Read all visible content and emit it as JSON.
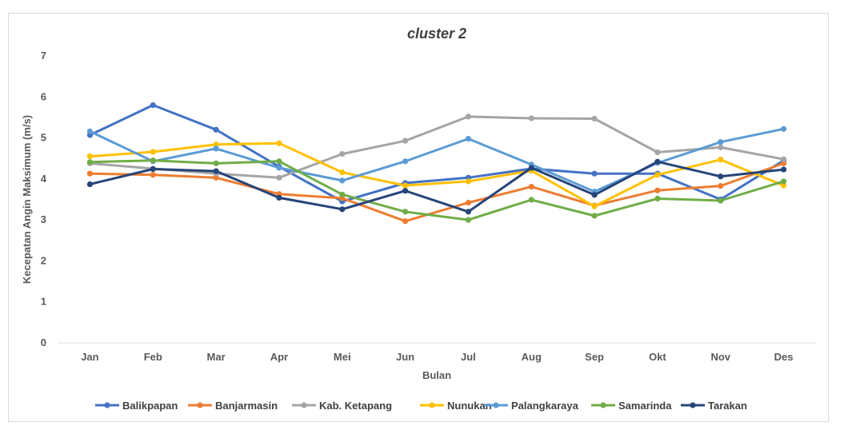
{
  "chart_data": {
    "type": "line",
    "title": "cluster 2",
    "xlabel": "Bulan",
    "ylabel": "Kecepatan Angin Maksimum (m/s)",
    "ylim": [
      0,
      7
    ],
    "yticks": [
      0,
      1,
      2,
      3,
      4,
      5,
      6,
      7
    ],
    "grid": false,
    "legend_position": "bottom",
    "categories": [
      "Jan",
      "Feb",
      "Mar",
      "Apr",
      "Mei",
      "Jun",
      "Jul",
      "Aug",
      "Sep",
      "Okt",
      "Nov",
      "Des"
    ],
    "series": [
      {
        "name": "Balikpapan",
        "color": "#4472c4",
        "values": [
          5.07,
          5.8,
          5.2,
          4.3,
          3.45,
          3.9,
          4.03,
          4.25,
          4.13,
          4.13,
          3.5,
          4.45
        ]
      },
      {
        "name": "Banjarmasin",
        "color": "#ed7d31",
        "values": [
          4.13,
          4.1,
          4.03,
          3.63,
          3.53,
          2.97,
          3.42,
          3.81,
          3.35,
          3.72,
          3.83,
          4.38
        ]
      },
      {
        "name": "Kab. Ketapang",
        "color": "#a5a5a5",
        "values": [
          4.38,
          4.25,
          4.13,
          4.03,
          4.61,
          4.93,
          5.52,
          5.48,
          5.47,
          4.65,
          4.77,
          4.48
        ]
      },
      {
        "name": "Nunukan",
        "color": "#ffc000",
        "values": [
          4.55,
          4.66,
          4.84,
          4.87,
          4.16,
          3.84,
          3.94,
          4.2,
          3.33,
          4.1,
          4.47,
          3.84
        ]
      },
      {
        "name": "Palangkaraya",
        "color": "#5b9bd5",
        "values": [
          5.16,
          4.43,
          4.74,
          4.27,
          3.96,
          4.43,
          4.98,
          4.35,
          3.69,
          4.39,
          4.9,
          5.22
        ]
      },
      {
        "name": "Samarinda",
        "color": "#70ad47",
        "values": [
          4.41,
          4.45,
          4.38,
          4.43,
          3.62,
          3.2,
          3.0,
          3.49,
          3.1,
          3.52,
          3.47,
          3.94
        ]
      },
      {
        "name": "Tarakan",
        "color": "#264478",
        "values": [
          3.87,
          4.24,
          4.19,
          3.54,
          3.26,
          3.71,
          3.2,
          4.27,
          3.61,
          4.42,
          4.06,
          4.23
        ]
      }
    ]
  }
}
